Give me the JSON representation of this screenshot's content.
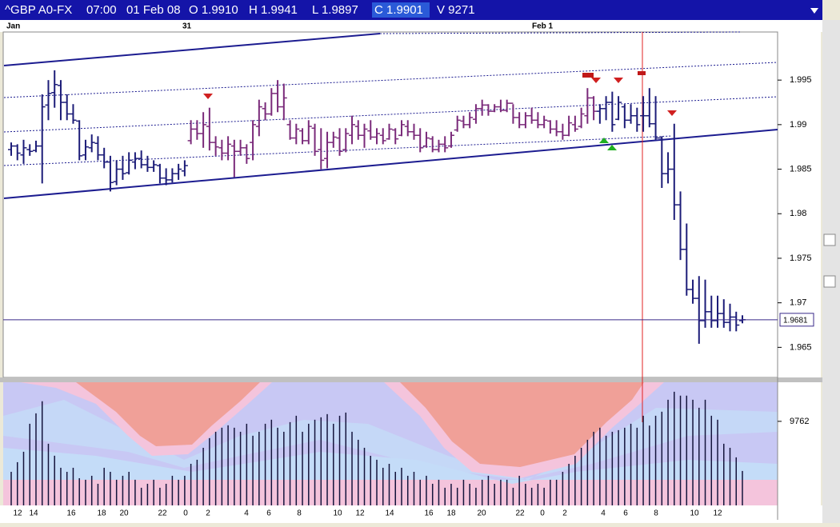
{
  "chart_data": {
    "type": "ohlc",
    "header": [
      "^GBP A0-FX",
      "07:00",
      "01 Feb 08",
      "O 1.9910",
      "H 1.9941",
      "L 1.9897",
      "C 1.9901",
      "V 9271"
    ],
    "date_labels": [
      "Jan",
      "31",
      "Feb 1"
    ],
    "x_labels": [
      "12",
      "14",
      "16",
      "18",
      "20",
      "22",
      "0",
      "2",
      "4",
      "6",
      "8",
      "10",
      "12",
      "14",
      "16",
      "18",
      "20",
      "22",
      "0",
      "2",
      "4",
      "6",
      "8",
      "10",
      "12"
    ],
    "ylim": [
      1.9618,
      2.0004
    ],
    "yticks": [
      1.965,
      1.97,
      1.975,
      1.98,
      1.985,
      1.99,
      1.995
    ],
    "last_price": 1.9681,
    "last_price_color": "#3a2a8a",
    "volume_ylim": [
      0,
      14300
    ],
    "volume_yticks": [
      9762
    ],
    "volume_color": "#14143c",
    "series": [
      {
        "color": "#1c1c78",
        "open": [
          1.9872,
          1.9876,
          1.9866,
          1.9872,
          1.9871,
          1.9876,
          1.9922,
          1.9936,
          1.9944,
          1.9925,
          1.9912,
          1.9904,
          1.9866,
          1.9874,
          1.9879,
          1.9866,
          1.9858,
          1.9836,
          1.985,
          1.9846,
          1.9858,
          1.9862,
          1.9855,
          1.9852,
          1.9854,
          1.984,
          1.9838,
          1.9845,
          1.9848
        ],
        "high": [
          1.988,
          1.9878,
          1.9883,
          1.9878,
          1.9882,
          1.9934,
          1.995,
          1.9961,
          1.995,
          1.9934,
          1.9923,
          1.9905,
          1.9883,
          1.9889,
          1.9887,
          1.9874,
          1.9865,
          1.986,
          1.9865,
          1.9869,
          1.9869,
          1.9871,
          1.9865,
          1.986,
          1.9856,
          1.9851,
          1.9851,
          1.9856,
          1.986
        ],
        "low": [
          1.9865,
          1.986,
          1.9856,
          1.9865,
          1.9869,
          1.9834,
          1.9905,
          1.9919,
          1.9905,
          1.9905,
          1.9901,
          1.986,
          1.986,
          1.9869,
          1.986,
          1.9851,
          1.9825,
          1.9832,
          1.9838,
          1.9844,
          1.985,
          1.9851,
          1.9847,
          1.9847,
          1.9834,
          1.9832,
          1.9835,
          1.9838,
          1.9842
        ],
        "close": [
          1.9876,
          1.9868,
          1.9874,
          1.987,
          1.9876,
          1.992,
          1.9935,
          1.9945,
          1.9925,
          1.9912,
          1.9905,
          1.9865,
          1.9875,
          1.988,
          1.9866,
          1.9858,
          1.9835,
          1.985,
          1.9845,
          1.986,
          1.9862,
          1.9855,
          1.9852,
          1.9855,
          1.984,
          1.9838,
          1.9845,
          1.985,
          1.9854
        ],
        "volume": [
          3900,
          5020,
          6230,
          9480,
          10690,
          12090,
          7160,
          5770,
          4370,
          3900,
          4370,
          3160,
          2980,
          3440,
          2510,
          4370,
          3900,
          2980,
          3440,
          3900,
          2980,
          2050,
          2510,
          2980,
          2050,
          2510,
          3440,
          2980,
          3440
        ]
      },
      {
        "color": "#7a2a7a",
        "open": [
          1.9882,
          1.9895,
          1.989,
          1.9898,
          1.988,
          1.9874,
          1.9868,
          1.9876,
          1.987,
          1.9874,
          1.988,
          1.9898,
          1.9918,
          1.9912,
          1.9935,
          1.992,
          1.99,
          1.9885,
          1.9893,
          1.9882,
          1.9896,
          1.9872,
          1.9862,
          1.988,
          1.9885,
          1.9872,
          1.9888,
          1.9898,
          1.9888,
          1.9893,
          1.9886,
          1.9888,
          1.9884,
          1.9894,
          1.9888,
          1.9898,
          1.9892,
          1.9888,
          1.9876,
          1.9884,
          1.9872,
          1.9878,
          1.9876,
          1.9894,
          1.9904,
          1.99,
          1.9906,
          1.9918,
          1.9922,
          1.9915,
          1.992,
          1.9916,
          1.9924,
          1.9908,
          1.99,
          1.991,
          1.9905,
          1.99,
          1.9904,
          1.9895,
          1.9892,
          1.9888,
          1.99,
          1.9898,
          1.991,
          1.993
        ],
        "high": [
          1.9905,
          1.9905,
          1.9914,
          1.9919,
          1.9887,
          1.9883,
          1.9887,
          1.9883,
          1.9883,
          1.9878,
          1.9905,
          1.9928,
          1.9925,
          1.9941,
          1.995,
          1.9946,
          1.9905,
          1.9901,
          1.9896,
          1.9905,
          1.9901,
          1.9896,
          1.9892,
          1.9892,
          1.9896,
          1.9896,
          1.991,
          1.9905,
          1.9901,
          1.9905,
          1.9896,
          1.9896,
          1.9901,
          1.9896,
          1.9905,
          1.9905,
          1.9901,
          1.9896,
          1.9892,
          1.9887,
          1.9883,
          1.9887,
          1.9892,
          1.991,
          1.991,
          1.9914,
          1.9923,
          1.9928,
          1.9923,
          1.9923,
          1.9928,
          1.9928,
          1.9923,
          1.9914,
          1.9914,
          1.9919,
          1.9914,
          1.991,
          1.9905,
          1.9905,
          1.9901,
          1.991,
          1.991,
          1.9919,
          1.9941,
          1.9932
        ],
        "low": [
          1.9878,
          1.9883,
          1.9874,
          1.9871,
          1.9865,
          1.986,
          1.986,
          1.9841,
          1.9865,
          1.9856,
          1.986,
          1.9887,
          1.9905,
          1.991,
          1.9914,
          1.9905,
          1.9883,
          1.9878,
          1.9878,
          1.9878,
          1.9865,
          1.985,
          1.9851,
          1.9874,
          1.9865,
          1.9869,
          1.9878,
          1.9883,
          1.9874,
          1.9883,
          1.9878,
          1.9878,
          1.9883,
          1.9878,
          1.9887,
          1.9887,
          1.9883,
          1.9869,
          1.9874,
          1.9869,
          1.9869,
          1.9869,
          1.9874,
          1.9892,
          1.9896,
          1.9896,
          1.9901,
          1.991,
          1.991,
          1.9914,
          1.9914,
          1.9914,
          1.9901,
          1.9896,
          1.9896,
          1.9901,
          1.9896,
          1.9896,
          1.989,
          1.9887,
          1.9883,
          1.9887,
          1.9892,
          1.9896,
          1.9901,
          1.9905
        ],
        "close": [
          1.9895,
          1.989,
          1.99,
          1.988,
          1.9875,
          1.9868,
          1.9878,
          1.987,
          1.9874,
          1.9862,
          1.99,
          1.992,
          1.9912,
          1.9935,
          1.992,
          1.993,
          1.9885,
          1.9895,
          1.9882,
          1.9898,
          1.987,
          1.986,
          1.988,
          1.9886,
          1.987,
          1.989,
          1.99,
          1.9888,
          1.9895,
          1.9886,
          1.989,
          1.9882,
          1.9895,
          1.9884,
          1.99,
          1.9892,
          1.9888,
          1.9874,
          1.9885,
          1.9872,
          1.9878,
          1.9874,
          1.9888,
          1.9905,
          1.99,
          1.9908,
          1.9918,
          1.9922,
          1.9915,
          1.992,
          1.9916,
          1.9924,
          1.9908,
          1.99,
          1.991,
          1.9905,
          1.99,
          1.9905,
          1.9895,
          1.9892,
          1.9888,
          1.9902,
          1.9895,
          1.9912,
          1.993,
          1.9915
        ],
        "volume": [
          4830,
          5300,
          6690,
          7810,
          8550,
          9020,
          9300,
          9020,
          8550,
          9480,
          8090,
          8550,
          9480,
          9950,
          9020,
          8550,
          9670,
          10410,
          8550,
          9480,
          9950,
          10230,
          10600,
          9480,
          10410,
          10780,
          8550,
          7620,
          6690,
          5760,
          5300,
          4370,
          4830,
          3900,
          4370,
          3440,
          3900,
          2980,
          3440,
          2510,
          2980,
          2050,
          2510,
          2050,
          2980,
          2510,
          2050,
          2980,
          3440,
          2510,
          2980,
          2980,
          2050,
          3440,
          2510,
          2050,
          2510,
          2050,
          2980,
          2980,
          3900,
          4830,
          5760,
          6690,
          7620,
          8550
        ]
      },
      {
        "color": "#1c1c78",
        "open": [
          1.9915,
          1.9918,
          1.9925,
          1.9906,
          1.992,
          1.9905,
          1.991,
          1.991,
          1.991,
          1.9901,
          1.9885,
          1.9845,
          1.985,
          1.981,
          1.976,
          1.9715,
          1.9705,
          1.968,
          1.969,
          1.968,
          1.9688,
          1.9678,
          1.9684,
          1.968
        ],
        "high": [
          1.9923,
          1.9932,
          1.9937,
          1.9932,
          1.9923,
          1.9923,
          1.9919,
          1.9932,
          1.9941,
          1.9932,
          1.9887,
          1.9869,
          1.9901,
          1.9825,
          1.9789,
          1.9726,
          1.973,
          1.9726,
          1.9708,
          1.9708,
          1.9704,
          1.9699,
          1.969,
          1.9686
        ],
        "low": [
          1.9901,
          1.9905,
          1.9892,
          1.9905,
          1.9896,
          1.9901,
          1.9892,
          1.9892,
          1.9897,
          1.9883,
          1.9829,
          1.9834,
          1.9793,
          1.9748,
          1.9708,
          1.9699,
          1.9654,
          1.9672,
          1.9672,
          1.9672,
          1.9672,
          1.9668,
          1.9668,
          1.9677
        ],
        "close": [
          1.9918,
          1.9925,
          1.99,
          1.9925,
          1.9905,
          1.991,
          1.99,
          1.991,
          1.9901,
          1.9885,
          1.9845,
          1.985,
          1.981,
          1.976,
          1.9715,
          1.9705,
          1.968,
          1.969,
          1.968,
          1.9688,
          1.9678,
          1.9684,
          1.9675,
          1.9681
        ],
        "volume": [
          9020,
          8090,
          8550,
          8740,
          9020,
          9480,
          9020,
          10410,
          9271,
          10410,
          10880,
          12270,
          13200,
          12740,
          12740,
          12270,
          11340,
          12270,
          10410,
          9950,
          7160,
          6690,
          5580,
          4000
        ]
      }
    ]
  }
}
